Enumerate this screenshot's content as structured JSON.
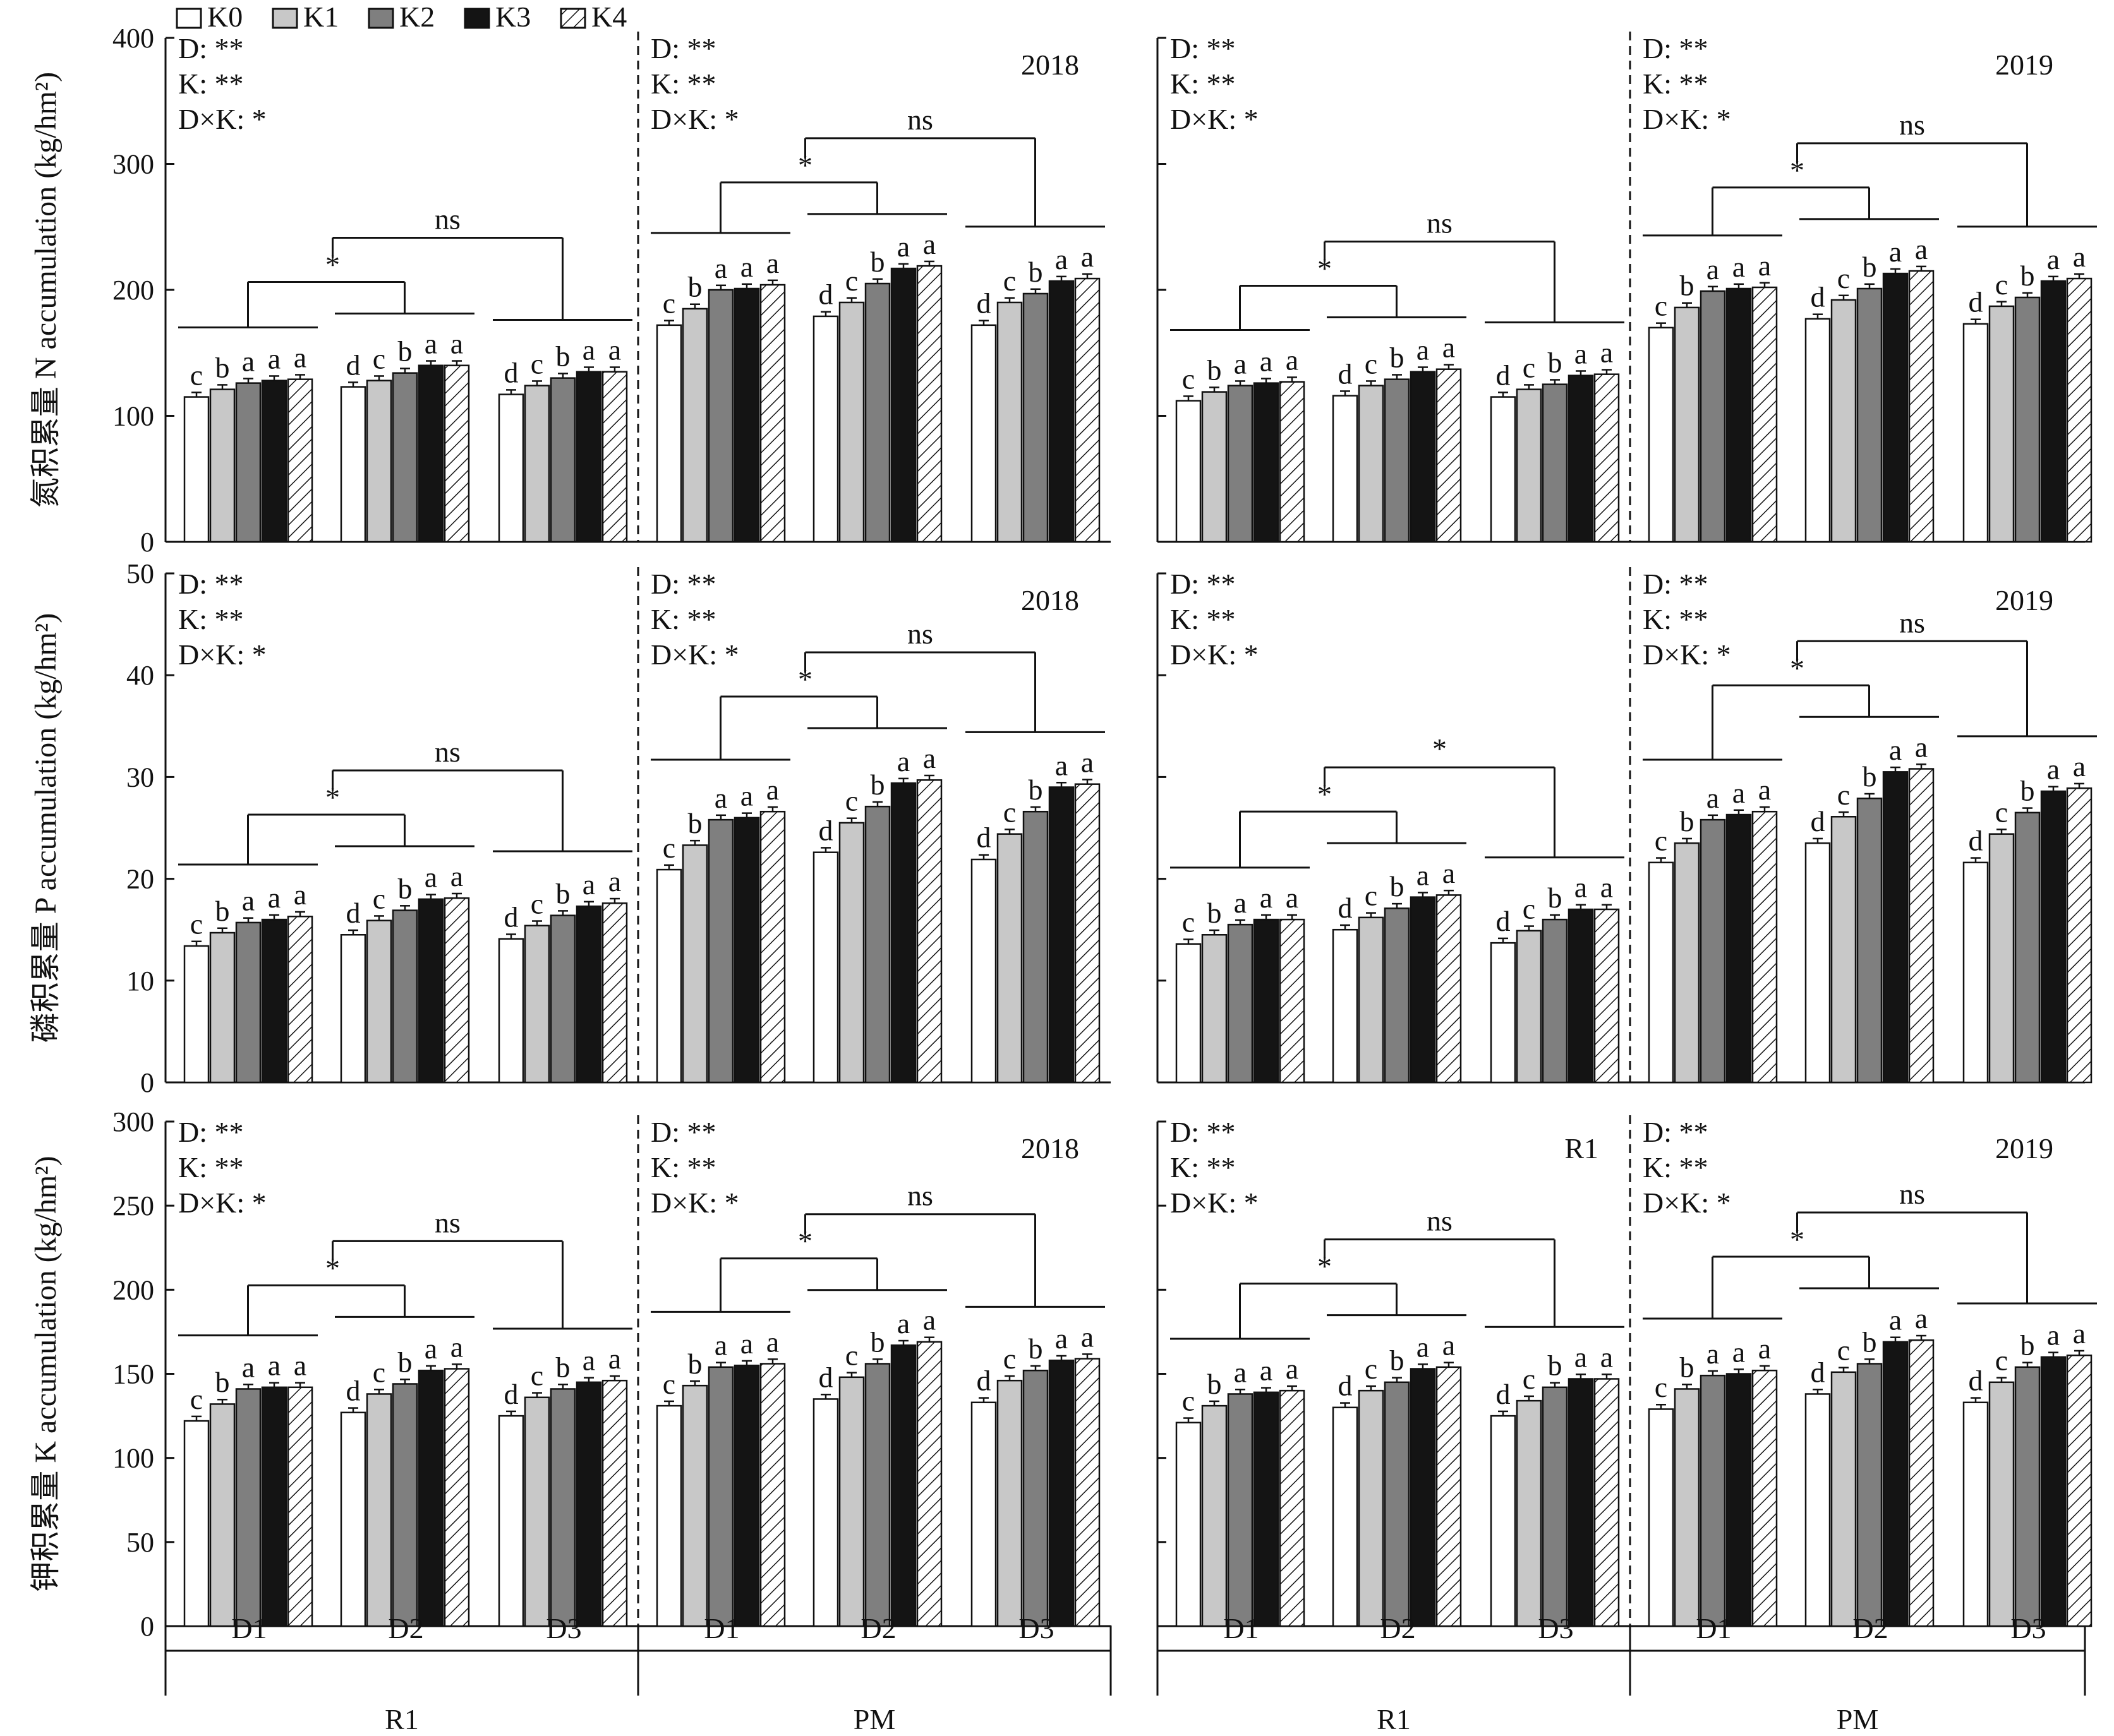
{
  "legend": [
    {
      "name": "K0",
      "fill": "#ffffff",
      "pattern": "none"
    },
    {
      "name": "K1",
      "fill": "#c8c8c8",
      "pattern": "none"
    },
    {
      "name": "K2",
      "fill": "#7f7f7f",
      "pattern": "none"
    },
    {
      "name": "K3",
      "fill": "#141414",
      "pattern": "none"
    },
    {
      "name": "K4",
      "fill": "#ffffff",
      "pattern": "hatch"
    }
  ],
  "row_ylabels": [
    "氮积累量 N accumulation (kg/hm²)",
    "磷积累量 P accumulation (kg/hm²)",
    "钾积累量 K accumulation (kg/hm²)"
  ],
  "x_groups": [
    "D1",
    "D2",
    "D3"
  ],
  "stage_labels": [
    "R1",
    "PM",
    "R1",
    "PM"
  ],
  "anova_lines": [
    "D: **",
    "K: **",
    "D×K: *"
  ],
  "chart_data": [
    {
      "type": "bar",
      "row": 0,
      "col": 0,
      "year_label": "",
      "ylim": [
        0,
        400
      ],
      "yticks": [
        0,
        100,
        200,
        300,
        400
      ],
      "categories": [
        "D1",
        "D2",
        "D3"
      ],
      "series": [
        {
          "name": "K0",
          "values": [
            115,
            123,
            117
          ]
        },
        {
          "name": "K1",
          "values": [
            121,
            128,
            124
          ]
        },
        {
          "name": "K2",
          "values": [
            126,
            134,
            130
          ]
        },
        {
          "name": "K3",
          "values": [
            128,
            140,
            135
          ]
        },
        {
          "name": "K4",
          "values": [
            129,
            140,
            135
          ]
        }
      ],
      "letters": [
        [
          "c",
          "b",
          "a",
          "a",
          "a"
        ],
        [
          "d",
          "c",
          "b",
          "a",
          "a"
        ],
        [
          "d",
          "c",
          "b",
          "a",
          "a"
        ]
      ],
      "comparison_labels": [
        "*",
        "ns"
      ]
    },
    {
      "type": "bar",
      "row": 0,
      "col": 1,
      "year_label": "2018",
      "ylim": [
        0,
        400
      ],
      "yticks": [
        0,
        100,
        200,
        300,
        400
      ],
      "categories": [
        "D1",
        "D2",
        "D3"
      ],
      "series": [
        {
          "name": "K0",
          "values": [
            172,
            179,
            172
          ]
        },
        {
          "name": "K1",
          "values": [
            185,
            190,
            190
          ]
        },
        {
          "name": "K2",
          "values": [
            200,
            205,
            197
          ]
        },
        {
          "name": "K3",
          "values": [
            201,
            217,
            207
          ]
        },
        {
          "name": "K4",
          "values": [
            204,
            219,
            209
          ]
        }
      ],
      "letters": [
        [
          "c",
          "b",
          "a",
          "a",
          "a"
        ],
        [
          "d",
          "c",
          "b",
          "a",
          "a"
        ],
        [
          "d",
          "c",
          "b",
          "a",
          "a"
        ]
      ],
      "comparison_labels": [
        "*",
        "ns"
      ]
    },
    {
      "type": "bar",
      "row": 0,
      "col": 2,
      "year_label": "",
      "ylim": [
        0,
        400
      ],
      "yticks": [
        0,
        100,
        200,
        300,
        400
      ],
      "categories": [
        "D1",
        "D2",
        "D3"
      ],
      "series": [
        {
          "name": "K0",
          "values": [
            112,
            116,
            115
          ]
        },
        {
          "name": "K1",
          "values": [
            119,
            124,
            121
          ]
        },
        {
          "name": "K2",
          "values": [
            124,
            129,
            125
          ]
        },
        {
          "name": "K3",
          "values": [
            126,
            135,
            132
          ]
        },
        {
          "name": "K4",
          "values": [
            127,
            137,
            133
          ]
        }
      ],
      "letters": [
        [
          "c",
          "b",
          "a",
          "a",
          "a"
        ],
        [
          "d",
          "c",
          "b",
          "a",
          "a"
        ],
        [
          "d",
          "c",
          "b",
          "a",
          "a"
        ]
      ],
      "comparison_labels": [
        "*",
        "ns"
      ]
    },
    {
      "type": "bar",
      "row": 0,
      "col": 3,
      "year_label": "2019",
      "ylim": [
        0,
        400
      ],
      "yticks": [
        0,
        100,
        200,
        300,
        400
      ],
      "categories": [
        "D1",
        "D2",
        "D3"
      ],
      "series": [
        {
          "name": "K0",
          "values": [
            170,
            177,
            173
          ]
        },
        {
          "name": "K1",
          "values": [
            186,
            192,
            187
          ]
        },
        {
          "name": "K2",
          "values": [
            199,
            201,
            194
          ]
        },
        {
          "name": "K3",
          "values": [
            201,
            213,
            207
          ]
        },
        {
          "name": "K4",
          "values": [
            202,
            215,
            209
          ]
        }
      ],
      "letters": [
        [
          "c",
          "b",
          "a",
          "a",
          "a"
        ],
        [
          "d",
          "c",
          "b",
          "a",
          "a"
        ],
        [
          "d",
          "c",
          "b",
          "a",
          "a"
        ]
      ],
      "comparison_labels": [
        "*",
        "ns"
      ]
    },
    {
      "type": "bar",
      "row": 1,
      "col": 0,
      "year_label": "",
      "ylim": [
        0,
        50
      ],
      "yticks": [
        0,
        10,
        20,
        30,
        40,
        50
      ],
      "categories": [
        "D1",
        "D2",
        "D3"
      ],
      "series": [
        {
          "name": "K0",
          "values": [
            13.4,
            14.5,
            14.1
          ]
        },
        {
          "name": "K1",
          "values": [
            14.7,
            15.9,
            15.4
          ]
        },
        {
          "name": "K2",
          "values": [
            15.7,
            16.9,
            16.4
          ]
        },
        {
          "name": "K3",
          "values": [
            16.0,
            18.0,
            17.3
          ]
        },
        {
          "name": "K4",
          "values": [
            16.3,
            18.1,
            17.6
          ]
        }
      ],
      "letters": [
        [
          "c",
          "b",
          "a",
          "a",
          "a"
        ],
        [
          "d",
          "c",
          "b",
          "a",
          "a"
        ],
        [
          "d",
          "c",
          "b",
          "a",
          "a"
        ]
      ],
      "comparison_labels": [
        "*",
        "ns"
      ]
    },
    {
      "type": "bar",
      "row": 1,
      "col": 1,
      "year_label": "2018",
      "ylim": [
        0,
        50
      ],
      "yticks": [
        0,
        10,
        20,
        30,
        40,
        50
      ],
      "categories": [
        "D1",
        "D2",
        "D3"
      ],
      "series": [
        {
          "name": "K0",
          "values": [
            20.9,
            22.6,
            21.9
          ]
        },
        {
          "name": "K1",
          "values": [
            23.3,
            25.5,
            24.4
          ]
        },
        {
          "name": "K2",
          "values": [
            25.8,
            27.1,
            26.6
          ]
        },
        {
          "name": "K3",
          "values": [
            26.0,
            29.4,
            29.0
          ]
        },
        {
          "name": "K4",
          "values": [
            26.6,
            29.7,
            29.3
          ]
        }
      ],
      "letters": [
        [
          "c",
          "b",
          "a",
          "a",
          "a"
        ],
        [
          "d",
          "c",
          "b",
          "a",
          "a"
        ],
        [
          "d",
          "c",
          "b",
          "a",
          "a"
        ]
      ],
      "comparison_labels": [
        "*",
        "ns"
      ]
    },
    {
      "type": "bar",
      "row": 1,
      "col": 2,
      "year_label": "",
      "ylim": [
        0,
        50
      ],
      "yticks": [
        0,
        10,
        20,
        30,
        40,
        50
      ],
      "categories": [
        "D1",
        "D2",
        "D3"
      ],
      "series": [
        {
          "name": "K0",
          "values": [
            13.6,
            15.0,
            13.7
          ]
        },
        {
          "name": "K1",
          "values": [
            14.5,
            16.2,
            14.9
          ]
        },
        {
          "name": "K2",
          "values": [
            15.5,
            17.1,
            16.0
          ]
        },
        {
          "name": "K3",
          "values": [
            16.0,
            18.2,
            17.0
          ]
        },
        {
          "name": "K4",
          "values": [
            16.0,
            18.4,
            17.0
          ]
        }
      ],
      "letters": [
        [
          "c",
          "b",
          "a",
          "a",
          "a"
        ],
        [
          "d",
          "c",
          "b",
          "a",
          "a"
        ],
        [
          "d",
          "c",
          "b",
          "a",
          "a"
        ]
      ],
      "comparison_labels": [
        "*",
        "*"
      ]
    },
    {
      "type": "bar",
      "row": 1,
      "col": 3,
      "year_label": "2019",
      "ylim": [
        0,
        50
      ],
      "yticks": [
        0,
        10,
        20,
        30,
        40,
        50
      ],
      "categories": [
        "D1",
        "D2",
        "D3"
      ],
      "series": [
        {
          "name": "K0",
          "values": [
            21.6,
            23.5,
            21.6
          ]
        },
        {
          "name": "K1",
          "values": [
            23.5,
            26.1,
            24.4
          ]
        },
        {
          "name": "K2",
          "values": [
            25.8,
            27.9,
            26.5
          ]
        },
        {
          "name": "K3",
          "values": [
            26.3,
            30.5,
            28.6
          ]
        },
        {
          "name": "K4",
          "values": [
            26.6,
            30.8,
            28.9
          ]
        }
      ],
      "letters": [
        [
          "c",
          "b",
          "a",
          "a",
          "a"
        ],
        [
          "d",
          "c",
          "b",
          "a",
          "a"
        ],
        [
          "d",
          "c",
          "b",
          "a",
          "a"
        ]
      ],
      "comparison_labels": [
        "*",
        "ns"
      ]
    },
    {
      "type": "bar",
      "row": 2,
      "col": 0,
      "year_label": "",
      "ylim": [
        0,
        300
      ],
      "yticks": [
        0,
        50,
        100,
        150,
        200,
        250,
        300
      ],
      "categories": [
        "D1",
        "D2",
        "D3"
      ],
      "series": [
        {
          "name": "K0",
          "values": [
            122,
            127,
            125
          ]
        },
        {
          "name": "K1",
          "values": [
            132,
            138,
            136
          ]
        },
        {
          "name": "K2",
          "values": [
            141,
            144,
            141
          ]
        },
        {
          "name": "K3",
          "values": [
            142,
            152,
            145
          ]
        },
        {
          "name": "K4",
          "values": [
            142,
            153,
            146
          ]
        }
      ],
      "letters": [
        [
          "c",
          "b",
          "a",
          "a",
          "a"
        ],
        [
          "d",
          "c",
          "b",
          "a",
          "a"
        ],
        [
          "d",
          "c",
          "b",
          "a",
          "a"
        ]
      ],
      "comparison_labels": [
        "*",
        "ns"
      ]
    },
    {
      "type": "bar",
      "row": 2,
      "col": 1,
      "year_label": "2018",
      "ylim": [
        0,
        300
      ],
      "yticks": [
        0,
        50,
        100,
        150,
        200,
        250,
        300
      ],
      "categories": [
        "D1",
        "D2",
        "D3"
      ],
      "series": [
        {
          "name": "K0",
          "values": [
            131,
            135,
            133
          ]
        },
        {
          "name": "K1",
          "values": [
            143,
            148,
            146
          ]
        },
        {
          "name": "K2",
          "values": [
            154,
            156,
            152
          ]
        },
        {
          "name": "K3",
          "values": [
            155,
            167,
            158
          ]
        },
        {
          "name": "K4",
          "values": [
            156,
            169,
            159
          ]
        }
      ],
      "letters": [
        [
          "c",
          "b",
          "a",
          "a",
          "a"
        ],
        [
          "d",
          "c",
          "b",
          "a",
          "a"
        ],
        [
          "d",
          "c",
          "b",
          "a",
          "a"
        ]
      ],
      "comparison_labels": [
        "*",
        "ns"
      ]
    },
    {
      "type": "bar",
      "row": 2,
      "col": 2,
      "year_label": "R1",
      "ylim": [
        0,
        300
      ],
      "yticks": [
        0,
        50,
        100,
        150,
        200,
        250,
        300
      ],
      "categories": [
        "D1",
        "D2",
        "D3"
      ],
      "series": [
        {
          "name": "K0",
          "values": [
            121,
            130,
            125
          ]
        },
        {
          "name": "K1",
          "values": [
            131,
            140,
            134
          ]
        },
        {
          "name": "K2",
          "values": [
            138,
            145,
            142
          ]
        },
        {
          "name": "K3",
          "values": [
            139,
            153,
            147
          ]
        },
        {
          "name": "K4",
          "values": [
            140,
            154,
            147
          ]
        }
      ],
      "letters": [
        [
          "c",
          "b",
          "a",
          "a",
          "a"
        ],
        [
          "d",
          "c",
          "b",
          "a",
          "a"
        ],
        [
          "d",
          "c",
          "b",
          "a",
          "a"
        ]
      ],
      "comparison_labels": [
        "*",
        "ns"
      ]
    },
    {
      "type": "bar",
      "row": 2,
      "col": 3,
      "year_label": "2019",
      "ylim": [
        0,
        300
      ],
      "yticks": [
        0,
        50,
        100,
        150,
        200,
        250,
        300
      ],
      "categories": [
        "D1",
        "D2",
        "D3"
      ],
      "series": [
        {
          "name": "K0",
          "values": [
            129,
            138,
            133
          ]
        },
        {
          "name": "K1",
          "values": [
            141,
            151,
            145
          ]
        },
        {
          "name": "K2",
          "values": [
            149,
            156,
            154
          ]
        },
        {
          "name": "K3",
          "values": [
            150,
            169,
            160
          ]
        },
        {
          "name": "K4",
          "values": [
            152,
            170,
            161
          ]
        }
      ],
      "letters": [
        [
          "c",
          "b",
          "a",
          "a",
          "a"
        ],
        [
          "d",
          "c",
          "b",
          "a",
          "a"
        ],
        [
          "d",
          "c",
          "b",
          "a",
          "a"
        ]
      ],
      "comparison_labels": [
        "*",
        "ns"
      ]
    }
  ]
}
